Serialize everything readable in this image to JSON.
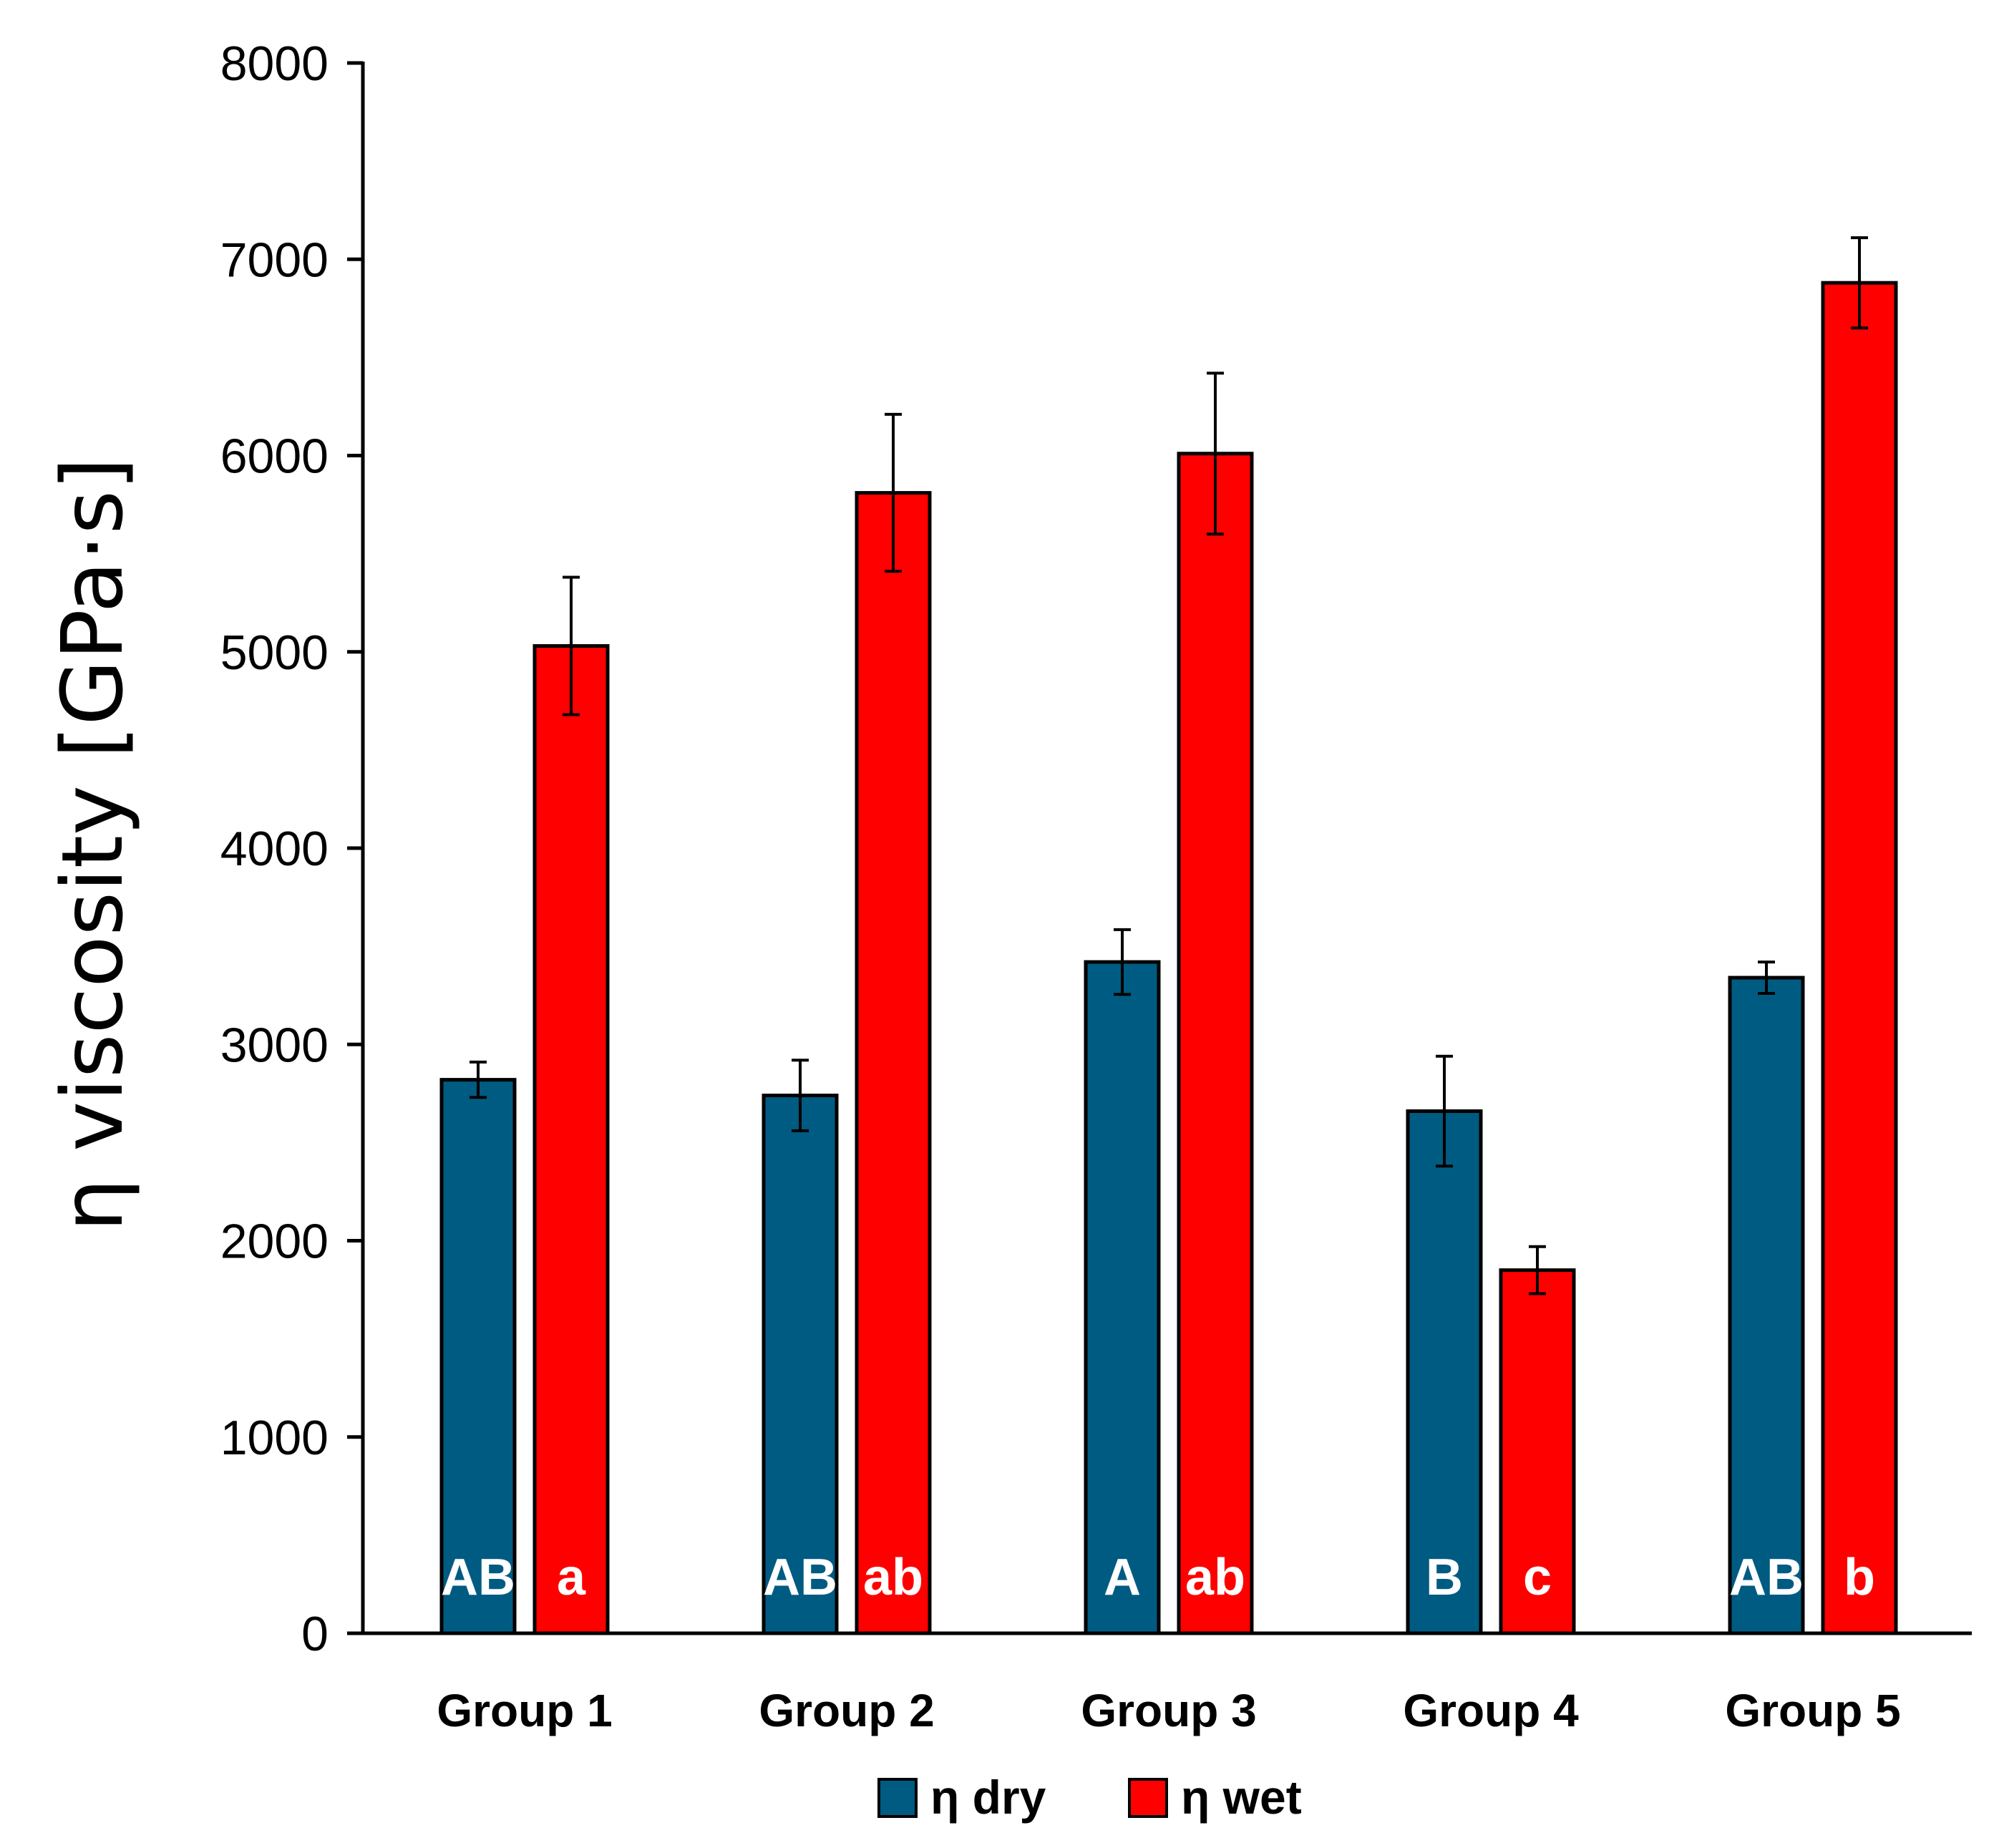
{
  "chart_data": {
    "type": "bar",
    "title": "",
    "xlabel": "",
    "ylabel": "η viscosity [GPa·s]",
    "ylim": [
      0,
      8000
    ],
    "yticks": [
      0,
      1000,
      2000,
      3000,
      4000,
      5000,
      6000,
      7000,
      8000
    ],
    "grid": false,
    "legend_position": "bottom",
    "categories": [
      "Group 1",
      "Group 2",
      "Group 3",
      "Group 4",
      "Group 5"
    ],
    "series": [
      {
        "name": "η dry",
        "color": "#005b82",
        "values": [
          2820,
          2740,
          3420,
          2660,
          3340
        ],
        "errors": [
          90,
          180,
          165,
          280,
          80
        ],
        "letters": [
          "AB",
          "AB",
          "A",
          "B",
          "AB"
        ]
      },
      {
        "name": "η wet",
        "color": "#ff0000",
        "values": [
          5030,
          5810,
          6010,
          1850,
          6880
        ],
        "errors": [
          350,
          400,
          410,
          120,
          230
        ],
        "letters": [
          "a",
          "ab",
          "ab",
          "c",
          "b"
        ]
      }
    ]
  }
}
